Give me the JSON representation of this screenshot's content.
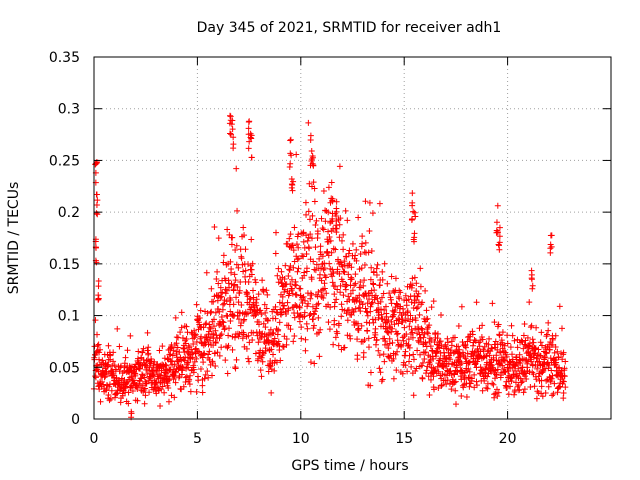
{
  "chart_data": {
    "type": "scatter",
    "title": "Day 345 of 2021, SRMTID for receiver adh1",
    "xlabel": "GPS time / hours",
    "ylabel": "SRMTID / TECUs",
    "xlim": [
      0,
      25
    ],
    "ylim": [
      0,
      0.35
    ],
    "xticks": [
      0,
      5,
      10,
      15,
      20
    ],
    "xtick_labels": [
      "0",
      "5",
      "10",
      "15",
      "20"
    ],
    "yticks": [
      0,
      0.05,
      0.1,
      0.15,
      0.2,
      0.25,
      0.3,
      0.35
    ],
    "ytick_labels": [
      "0",
      "0.05",
      "0.1",
      "0.15",
      "0.2",
      "0.25",
      "0.3",
      "0.35"
    ],
    "grid": true,
    "marker": "+",
    "series": [
      {
        "name": "SRMTID",
        "color": "#ff0000",
        "x_range": [
          0,
          22.8
        ],
        "trend": [
          [
            0,
            0.05
          ],
          [
            0.5,
            0.045
          ],
          [
            1,
            0.04
          ],
          [
            1.5,
            0.035
          ],
          [
            2,
            0.04
          ],
          [
            2.5,
            0.05
          ],
          [
            3,
            0.04
          ],
          [
            3.5,
            0.045
          ],
          [
            4,
            0.055
          ],
          [
            4.5,
            0.06
          ],
          [
            5,
            0.065
          ],
          [
            5.5,
            0.08
          ],
          [
            6,
            0.1
          ],
          [
            6.5,
            0.12
          ],
          [
            7,
            0.125
          ],
          [
            7.5,
            0.11
          ],
          [
            8,
            0.095
          ],
          [
            8.5,
            0.07
          ],
          [
            9,
            0.1
          ],
          [
            9.5,
            0.13
          ],
          [
            10,
            0.13
          ],
          [
            10.5,
            0.14
          ],
          [
            11,
            0.13
          ],
          [
            11.5,
            0.15
          ],
          [
            12,
            0.13
          ],
          [
            12.5,
            0.12
          ],
          [
            13,
            0.115
          ],
          [
            13.5,
            0.11
          ],
          [
            14,
            0.09
          ],
          [
            14.5,
            0.085
          ],
          [
            15,
            0.09
          ],
          [
            15.5,
            0.1
          ],
          [
            16,
            0.065
          ],
          [
            16.5,
            0.06
          ],
          [
            17,
            0.055
          ],
          [
            17.5,
            0.05
          ],
          [
            18,
            0.055
          ],
          [
            18.5,
            0.06
          ],
          [
            19,
            0.055
          ],
          [
            19.5,
            0.055
          ],
          [
            20,
            0.05
          ],
          [
            20.5,
            0.045
          ],
          [
            21,
            0.06
          ],
          [
            21.5,
            0.05
          ],
          [
            22,
            0.055
          ],
          [
            22.8,
            0.045
          ]
        ],
        "spikes": [
          [
            0.1,
            0.25
          ],
          [
            0.15,
            0.22
          ],
          [
            0.1,
            0.18
          ],
          [
            0.2,
            0.14
          ],
          [
            6.6,
            0.3
          ],
          [
            6.7,
            0.29
          ],
          [
            7.5,
            0.29
          ],
          [
            7.6,
            0.28
          ],
          [
            9.5,
            0.27
          ],
          [
            9.6,
            0.25
          ],
          [
            10.5,
            0.275
          ],
          [
            10.6,
            0.255
          ],
          [
            11.5,
            0.22
          ],
          [
            11.7,
            0.21
          ],
          [
            15.4,
            0.22
          ],
          [
            15.5,
            0.2
          ],
          [
            19.5,
            0.21
          ],
          [
            19.6,
            0.19
          ],
          [
            21.2,
            0.15
          ],
          [
            22.1,
            0.19
          ],
          [
            5.7,
            0.0
          ],
          [
            1.8,
            0.01
          ]
        ],
        "point_count": 2200
      }
    ]
  }
}
